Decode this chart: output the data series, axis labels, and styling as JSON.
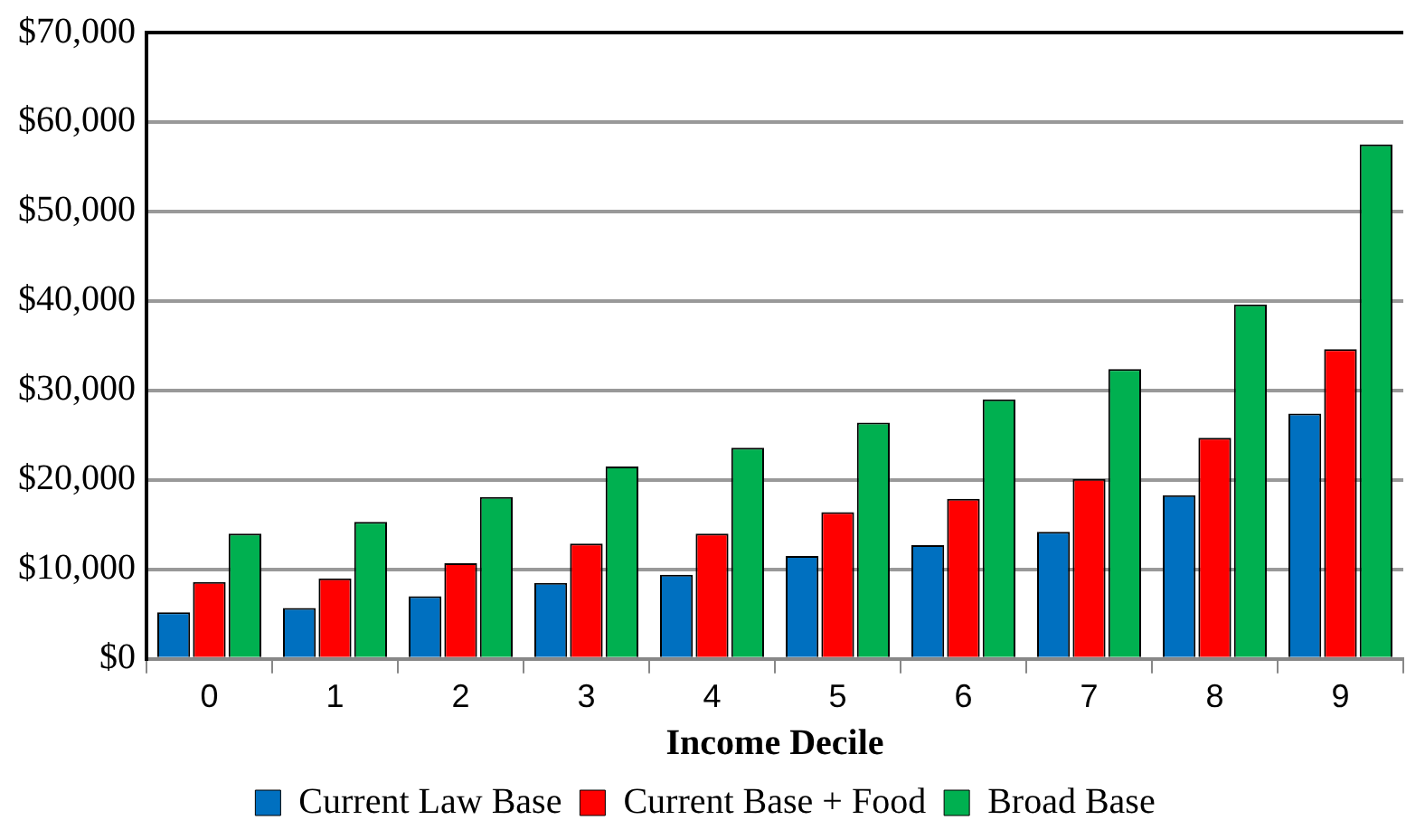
{
  "chart_data": {
    "type": "bar",
    "xlabel": "Income Decile",
    "categories": [
      "0",
      "1",
      "2",
      "3",
      "4",
      "5",
      "6",
      "7",
      "8",
      "9"
    ],
    "series": [
      {
        "name": "Current Law Base",
        "color": "#0070c0",
        "values": [
          5200,
          5700,
          7000,
          8500,
          9400,
          11500,
          12700,
          14200,
          18300,
          27400
        ]
      },
      {
        "name": "Current Base + Food",
        "color": "#ff0000",
        "values": [
          8600,
          9000,
          10700,
          12900,
          14000,
          16400,
          17900,
          20100,
          24700,
          34600
        ]
      },
      {
        "name": "Broad Base",
        "color": "#00b050",
        "values": [
          14000,
          15300,
          18100,
          21500,
          23600,
          26400,
          29000,
          32400,
          39600,
          57500
        ]
      }
    ],
    "ylim": [
      0,
      70000
    ],
    "yticks": [
      {
        "value": 0,
        "label": "$0"
      },
      {
        "value": 10000,
        "label": "$10,000"
      },
      {
        "value": 20000,
        "label": "$20,000"
      },
      {
        "value": 30000,
        "label": "$30,000"
      },
      {
        "value": 40000,
        "label": "$40,000"
      },
      {
        "value": 50000,
        "label": "$50,000"
      },
      {
        "value": 60000,
        "label": "$60,000"
      },
      {
        "value": 70000,
        "label": "$70,000"
      }
    ],
    "grid": "y",
    "legend": "bottom"
  }
}
